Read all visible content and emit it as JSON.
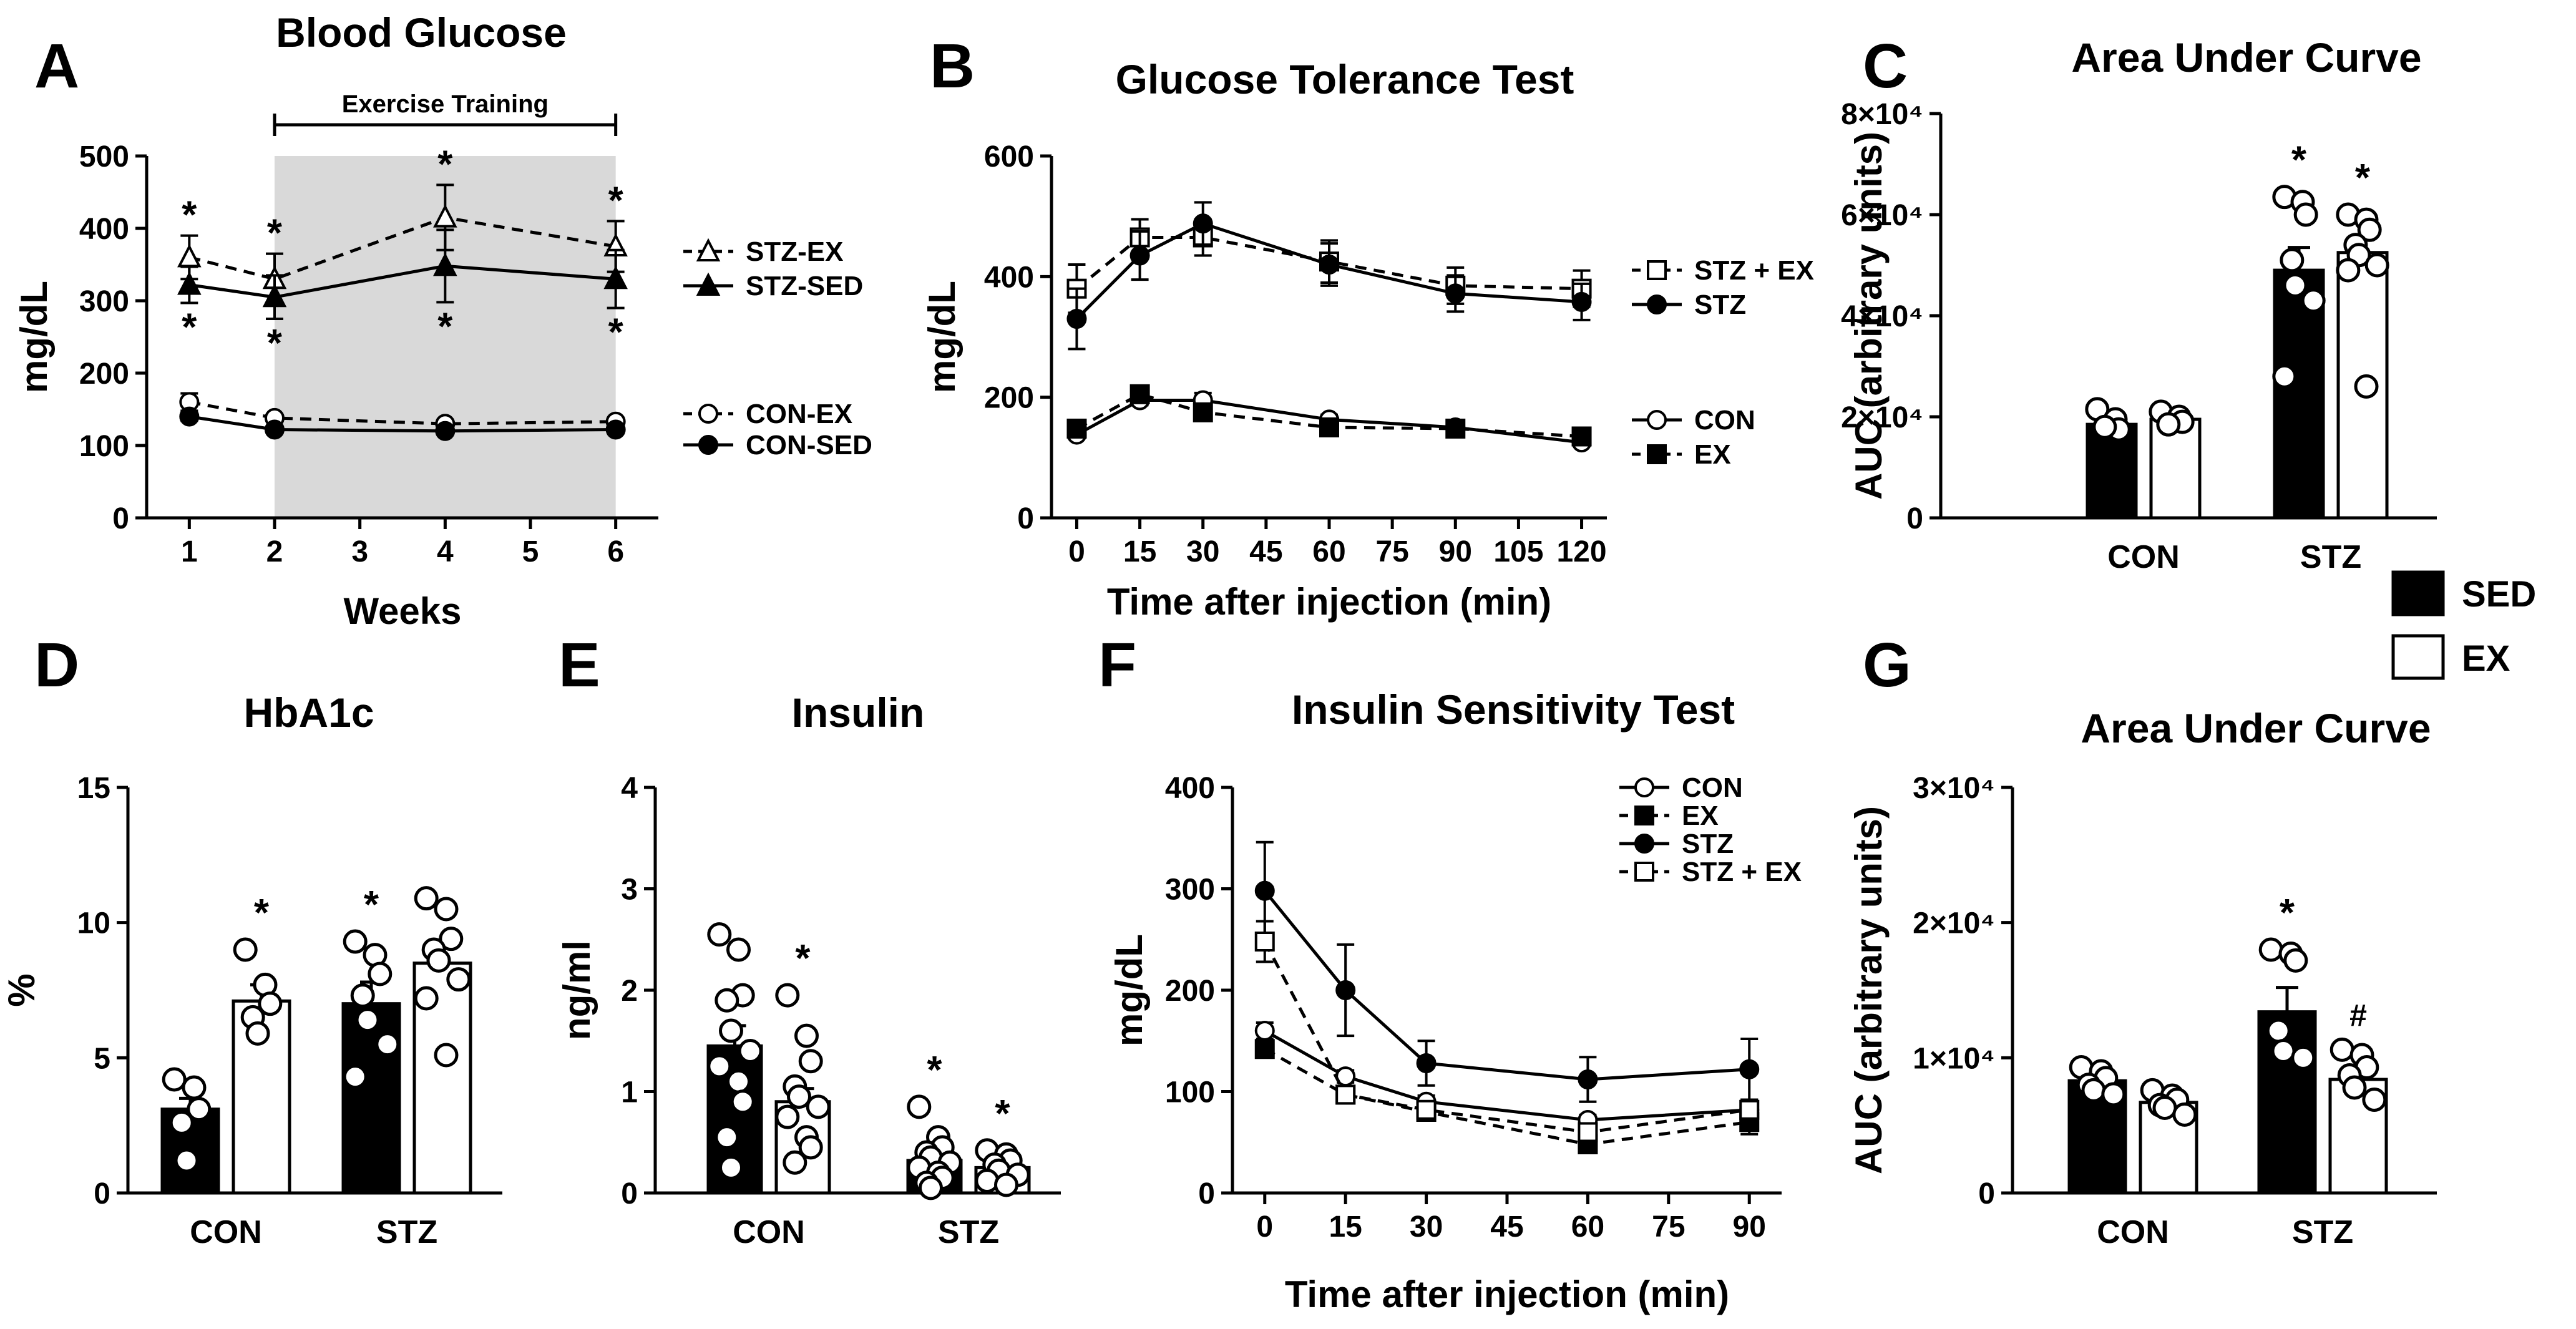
{
  "legend_bars": [
    {
      "label": "SED",
      "fill": "#000000"
    },
    {
      "label": "EX",
      "fill": "#ffffff"
    }
  ],
  "chart_data": [
    {
      "panel": "A",
      "type": "line",
      "title": "Blood Glucose",
      "xlabel": "Weeks",
      "ylabel": "mg/dL",
      "xlim": [
        0.5,
        6.5
      ],
      "ylim": [
        0,
        500
      ],
      "xticks": [
        "1",
        "2",
        "3",
        "4",
        "5",
        "6"
      ],
      "yticks": [
        "0",
        "100",
        "200",
        "300",
        "400",
        "500"
      ],
      "annotation": "Exercise Training",
      "shaded_range": [
        2,
        6
      ],
      "series": [
        {
          "name": "STZ-EX",
          "x": [
            1,
            2,
            4,
            6
          ],
          "y": [
            360,
            330,
            415,
            375
          ],
          "err": [
            30,
            35,
            45,
            35
          ],
          "marker": "tri-open",
          "dashed": true,
          "stars": [
            "above",
            "above",
            "above",
            "above"
          ]
        },
        {
          "name": "STZ-SED",
          "x": [
            1,
            2,
            4,
            6
          ],
          "y": [
            322,
            305,
            348,
            330
          ],
          "err": [
            25,
            30,
            50,
            40
          ],
          "marker": "tri-filled",
          "dashed": false,
          "stars": [
            "below",
            "below",
            "below",
            "below"
          ]
        },
        {
          "name": "CON-EX",
          "x": [
            1,
            2,
            4,
            6
          ],
          "y": [
            160,
            138,
            130,
            133
          ],
          "err": [
            12,
            5,
            4,
            5
          ],
          "marker": "circle-open",
          "dashed": true,
          "stars": []
        },
        {
          "name": "CON-SED",
          "x": [
            1,
            2,
            4,
            6
          ],
          "y": [
            140,
            122,
            120,
            122
          ],
          "err": [
            6,
            4,
            4,
            5
          ],
          "marker": "circle-filled",
          "dashed": false,
          "stars": []
        }
      ]
    },
    {
      "panel": "B",
      "type": "line",
      "title": "Glucose Tolerance Test",
      "xlabel": "Time after injection (min)",
      "ylabel": "mg/dL",
      "xlim": [
        -6,
        126
      ],
      "ylim": [
        0,
        600
      ],
      "xticks": [
        "0",
        "15",
        "30",
        "45",
        "60",
        "75",
        "90",
        "105",
        "120"
      ],
      "yticks": [
        "0",
        "200",
        "400",
        "600"
      ],
      "series": [
        {
          "name": "STZ + EX",
          "x": [
            0,
            15,
            30,
            60,
            90,
            120
          ],
          "y": [
            380,
            465,
            465,
            425,
            385,
            380
          ],
          "err": [
            40,
            30,
            30,
            35,
            30,
            30
          ],
          "marker": "square-open",
          "dashed": true
        },
        {
          "name": "STZ",
          "x": [
            0,
            15,
            30,
            60,
            90,
            120
          ],
          "y": [
            330,
            435,
            488,
            420,
            372,
            358
          ],
          "err": [
            50,
            40,
            35,
            35,
            30,
            30
          ],
          "marker": "circle-filled",
          "dashed": false
        },
        {
          "name": "CON",
          "x": [
            0,
            15,
            30,
            60,
            90,
            120
          ],
          "y": [
            138,
            195,
            195,
            163,
            150,
            125
          ],
          "err": [
            6,
            8,
            12,
            8,
            5,
            5
          ],
          "marker": "circle-open",
          "dashed": false
        },
        {
          "name": "EX",
          "x": [
            0,
            15,
            30,
            60,
            90,
            120
          ],
          "y": [
            148,
            205,
            175,
            150,
            148,
            135
          ],
          "err": [
            8,
            6,
            8,
            5,
            5,
            5
          ],
          "marker": "square-filled",
          "dashed": true
        }
      ]
    },
    {
      "panel": "C",
      "type": "bar",
      "title": "Area Under Curve",
      "ylabel": "AUC (arbitrary units)",
      "ylim": [
        0,
        80000
      ],
      "yticks": [
        "0",
        "2×10⁴",
        "4×10⁴",
        "6×10⁴",
        "8×10⁴"
      ],
      "categories": [
        "CON",
        "STZ"
      ],
      "series": [
        {
          "name": "SED",
          "values": [
            18500,
            49000
          ],
          "err": [
            1000,
            4500
          ],
          "points": [
            [
              21500,
              19500,
              17500,
              18000
            ],
            [
              63500,
              62500,
              60000,
              51000,
              46000,
              43000,
              28000
            ]
          ],
          "stars": [
            false,
            true
          ]
        },
        {
          "name": "EX",
          "values": [
            19500,
            52500
          ],
          "err": [
            800,
            2500
          ],
          "points": [
            [
              21000,
              20000,
              19000,
              18500
            ],
            [
              60000,
              59000,
              57000,
              54000,
              52000,
              50000,
              49000,
              26000
            ]
          ],
          "stars": [
            false,
            true
          ]
        }
      ]
    },
    {
      "panel": "D",
      "type": "bar",
      "title": "HbA1c",
      "ylabel": "%",
      "ylim": [
        0,
        15
      ],
      "yticks": [
        "0",
        "5",
        "10",
        "15"
      ],
      "categories": [
        "CON",
        "STZ"
      ],
      "series": [
        {
          "name": "SED",
          "values": [
            3.1,
            7.0
          ],
          "err": [
            0.4,
            0.8
          ],
          "points": [
            [
              4.2,
              3.9,
              3.1,
              2.6,
              1.2
            ],
            [
              9.3,
              8.8,
              8.1,
              7.3,
              6.4,
              5.5,
              4.3
            ]
          ],
          "stars": [
            false,
            true
          ]
        },
        {
          "name": "EX",
          "values": [
            7.1,
            8.5
          ],
          "err": [
            0.6,
            0.6
          ],
          "points": [
            [
              9.0,
              7.7,
              7.0,
              6.5,
              5.9
            ],
            [
              10.9,
              10.5,
              9.4,
              9.0,
              8.6,
              7.9,
              7.2,
              5.1
            ]
          ],
          "stars": [
            true,
            false
          ]
        }
      ]
    },
    {
      "panel": "E",
      "type": "bar",
      "title": "Insulin",
      "ylabel": "ng/ml",
      "ylim": [
        0,
        4
      ],
      "yticks": [
        "0",
        "1",
        "2",
        "3",
        "4"
      ],
      "categories": [
        "CON",
        "STZ"
      ],
      "series": [
        {
          "name": "SED",
          "values": [
            1.45,
            0.32
          ],
          "err": [
            0.2,
            0.07
          ],
          "points": [
            [
              2.55,
              2.4,
              1.95,
              1.9,
              1.6,
              1.4,
              1.25,
              1.1,
              0.9,
              0.55,
              0.25
            ],
            [
              0.85,
              0.55,
              0.45,
              0.4,
              0.35,
              0.3,
              0.25,
              0.2,
              0.15,
              0.1,
              0.05
            ]
          ],
          "stars": [
            false,
            true
          ]
        },
        {
          "name": "EX",
          "values": [
            0.9,
            0.25
          ],
          "err": [
            0.13,
            0.04
          ],
          "points": [
            [
              1.95,
              1.55,
              1.3,
              1.05,
              0.95,
              0.85,
              0.75,
              0.55,
              0.45,
              0.3
            ],
            [
              0.42,
              0.38,
              0.32,
              0.28,
              0.22,
              0.18,
              0.12,
              0.08
            ]
          ],
          "stars": [
            true,
            true
          ]
        }
      ]
    },
    {
      "panel": "F",
      "type": "line",
      "title": "Insulin Sensitivity Test",
      "xlabel": "Time after injection (min)",
      "ylabel": "mg/dL",
      "xlim": [
        -6,
        96
      ],
      "ylim": [
        0,
        400
      ],
      "xticks": [
        "0",
        "15",
        "30",
        "45",
        "60",
        "75",
        "90"
      ],
      "yticks": [
        "0",
        "100",
        "200",
        "300",
        "400"
      ],
      "series": [
        {
          "name": "CON",
          "x": [
            0,
            15,
            30,
            60,
            90
          ],
          "y": [
            160,
            115,
            90,
            72,
            82
          ],
          "err": [
            8,
            6,
            6,
            5,
            8
          ],
          "marker": "circle-open",
          "dashed": false
        },
        {
          "name": "EX",
          "x": [
            0,
            15,
            30,
            60,
            90
          ],
          "y": [
            142,
            97,
            80,
            48,
            70
          ],
          "err": [
            6,
            5,
            5,
            6,
            12
          ],
          "marker": "square-filled",
          "dashed": true
        },
        {
          "name": "STZ",
          "x": [
            0,
            15,
            30,
            60,
            90
          ],
          "y": [
            298,
            200,
            128,
            112,
            122
          ],
          "err": [
            48,
            45,
            22,
            22,
            30
          ],
          "marker": "circle-filled",
          "dashed": false
        },
        {
          "name": "STZ + EX",
          "x": [
            0,
            15,
            30,
            60,
            90
          ],
          "y": [
            248,
            97,
            82,
            60,
            82
          ],
          "err": [
            20,
            8,
            6,
            6,
            10
          ],
          "marker": "square-open",
          "dashed": true
        }
      ]
    },
    {
      "panel": "G",
      "type": "bar",
      "title": "Area Under Curve",
      "ylabel": "AUC (arbitrary units)",
      "ylim": [
        0,
        30000
      ],
      "yticks": [
        "0",
        "1×10⁴",
        "2×10⁴",
        "3×10⁴"
      ],
      "categories": [
        "CON",
        "STZ"
      ],
      "series": [
        {
          "name": "SED",
          "values": [
            8300,
            13400
          ],
          "err": [
            500,
            1800
          ],
          "points": [
            [
              9300,
              9000,
              8500,
              8000,
              7600,
              7300
            ],
            [
              18000,
              17700,
              17200,
              12000,
              10500,
              10000
            ]
          ],
          "stars": [
            false,
            true
          ]
        },
        {
          "name": "EX",
          "values": [
            6700,
            8400
          ],
          "err": [
            400,
            700
          ],
          "points": [
            [
              7600,
              7200,
              6900,
              6500,
              6300,
              5800
            ],
            [
              10600,
              10200,
              9300,
              8700,
              7800,
              6900
            ]
          ],
          "stars": [
            false,
            false
          ],
          "hash": [
            false,
            true
          ]
        }
      ]
    }
  ]
}
